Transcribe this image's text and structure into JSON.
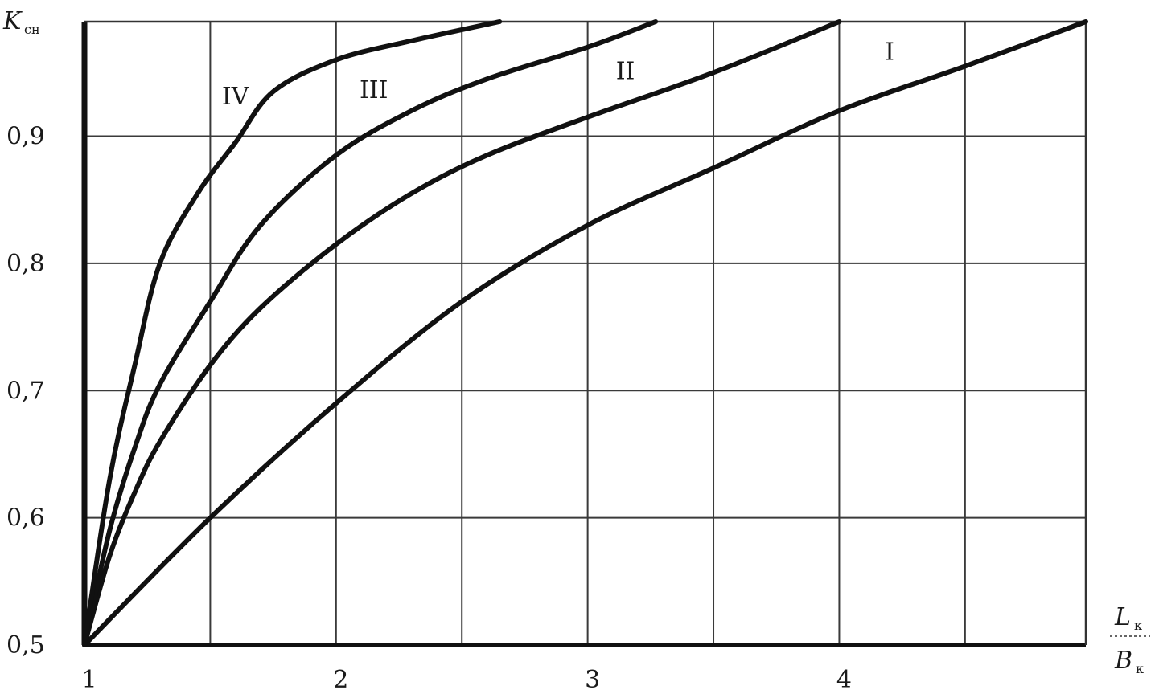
{
  "chart_data": {
    "type": "line",
    "ylabel": {
      "main": "K",
      "sub": "сн"
    },
    "xlabel": {
      "numerator_main": "L",
      "numerator_sub": "к",
      "denominator_main": "B",
      "denominator_sub": "к"
    },
    "xlim": [
      1,
      4.98
    ],
    "ylim": [
      0.5,
      0.99
    ],
    "x_ticks": [
      {
        "value": 1,
        "label": "1"
      },
      {
        "value": 2,
        "label": "2"
      },
      {
        "value": 3,
        "label": "3"
      },
      {
        "value": 4,
        "label": "4"
      }
    ],
    "y_ticks": [
      {
        "value": 0.5,
        "label": "0,5"
      },
      {
        "value": 0.6,
        "label": "0,6"
      },
      {
        "value": 0.7,
        "label": "0,7"
      },
      {
        "value": 0.8,
        "label": "0,8"
      },
      {
        "value": 0.9,
        "label": "0,9"
      }
    ],
    "x_grid": [
      1.5,
      2,
      2.5,
      3,
      3.5,
      4,
      4.5
    ],
    "y_grid": [
      0.6,
      0.7,
      0.8,
      0.9
    ],
    "grid": true,
    "line_color": "#111111",
    "grid_color": "#3a3a3a",
    "series": [
      {
        "label": "I",
        "x": [
          1.0,
          1.5,
          2.0,
          2.5,
          3.0,
          3.5,
          4.0,
          4.5,
          4.98
        ],
        "y": [
          0.5,
          0.6,
          0.69,
          0.77,
          0.83,
          0.875,
          0.92,
          0.955,
          0.99
        ]
      },
      {
        "label": "II",
        "x": [
          1.0,
          1.1,
          1.2,
          1.3,
          1.5,
          1.7,
          2.0,
          2.3,
          2.6,
          3.0,
          3.5,
          4.0
        ],
        "y": [
          0.5,
          0.57,
          0.62,
          0.66,
          0.72,
          0.765,
          0.815,
          0.855,
          0.885,
          0.915,
          0.95,
          0.99
        ]
      },
      {
        "label": "III",
        "x": [
          1.0,
          1.1,
          1.2,
          1.3,
          1.5,
          1.7,
          2.0,
          2.3,
          2.6,
          3.0,
          3.27
        ],
        "y": [
          0.5,
          0.59,
          0.655,
          0.705,
          0.77,
          0.83,
          0.885,
          0.92,
          0.945,
          0.97,
          0.99
        ]
      },
      {
        "label": "IV",
        "x": [
          1.0,
          1.1,
          1.2,
          1.3,
          1.45,
          1.6,
          1.75,
          2.0,
          2.3,
          2.65
        ],
        "y": [
          0.5,
          0.63,
          0.72,
          0.8,
          0.855,
          0.895,
          0.935,
          0.96,
          0.975,
          0.99
        ]
      }
    ],
    "series_label_positions": [
      {
        "label": "I",
        "x": 4.2,
        "y": 0.96
      },
      {
        "label": "II",
        "x": 3.15,
        "y": 0.945
      },
      {
        "label": "III",
        "x": 2.15,
        "y": 0.93
      },
      {
        "label": "IV",
        "x": 1.6,
        "y": 0.925
      }
    ]
  }
}
